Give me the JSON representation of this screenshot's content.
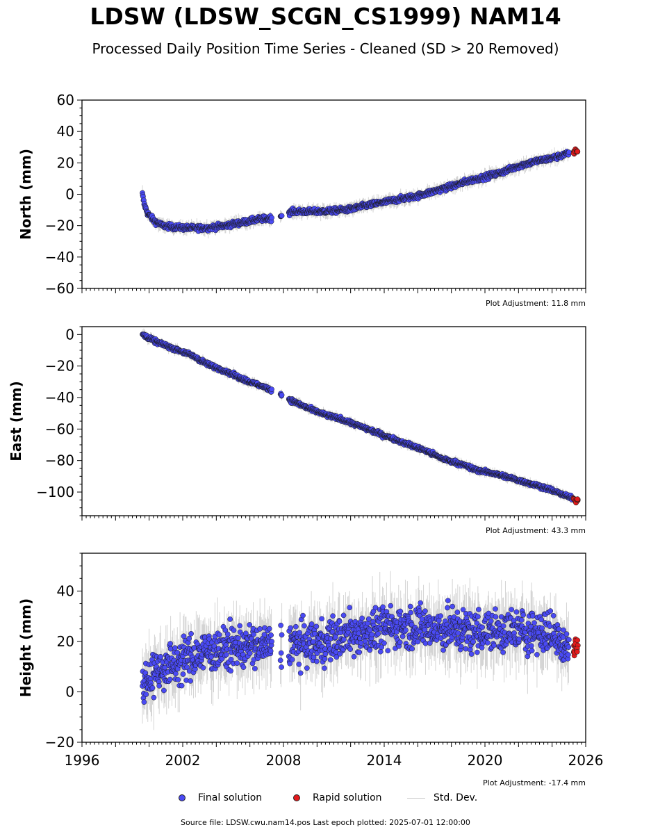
{
  "title": "LDSW (LDSW_SCGN_CS1999) NAM14",
  "subtitle": "Processed Daily Position Time Series - Cleaned (SD > 20 Removed)",
  "legend": {
    "final_label": "Final solution",
    "rapid_label": "Rapid solution",
    "std_label": "Std. Dev."
  },
  "source": "Source file: LDSW.cwu.nam14.pos  Last epoch plotted: 2025-07-01 12:00:00",
  "colors": {
    "final": "#4a4af4",
    "rapid": "#e41a1c",
    "stddev": "#a0a0a0",
    "marker_edge": "#1a1a1a"
  },
  "chart_data": [
    {
      "type": "scatter",
      "ylabel": "North (mm)",
      "xlim": [
        1996,
        2026
      ],
      "ylim": [
        -60,
        60
      ],
      "yticks": [
        -60,
        -40,
        -20,
        0,
        20,
        40,
        60
      ],
      "adjustment": "Plot Adjustment: 11.8 mm",
      "final_series": [
        [
          1999.6,
          0
        ],
        [
          1999.7,
          -6
        ],
        [
          1999.9,
          -12
        ],
        [
          2000.3,
          -17
        ],
        [
          2000.8,
          -20
        ],
        [
          2001.5,
          -21
        ],
        [
          2002.5,
          -21.5
        ],
        [
          2003.5,
          -21.5
        ],
        [
          2004.5,
          -20
        ],
        [
          2005.5,
          -18
        ],
        [
          2006.5,
          -16
        ],
        [
          2007.5,
          -15
        ],
        [
          2008.5,
          -11
        ],
        [
          2010,
          -11
        ],
        [
          2011,
          -10.5
        ],
        [
          2012,
          -9.5
        ],
        [
          2013,
          -7
        ],
        [
          2014,
          -5
        ],
        [
          2015,
          -3
        ],
        [
          2016,
          -1
        ],
        [
          2017,
          2
        ],
        [
          2018,
          5
        ],
        [
          2019,
          8.5
        ],
        [
          2020,
          11
        ],
        [
          2021,
          14
        ],
        [
          2022,
          18
        ],
        [
          2023,
          21
        ],
        [
          2024,
          23
        ],
        [
          2025,
          26
        ]
      ],
      "rapid_series": [
        [
          2025.3,
          27
        ],
        [
          2025.4,
          28
        ],
        [
          2025.5,
          27
        ]
      ],
      "noise": 2.0,
      "gaps": [
        [
          2007.3,
          2007.8
        ],
        [
          2007.9,
          2008.3
        ]
      ]
    },
    {
      "type": "scatter",
      "ylabel": "East (mm)",
      "xlim": [
        1996,
        2026
      ],
      "ylim": [
        -115,
        5
      ],
      "yticks": [
        -100,
        -80,
        -60,
        -40,
        -20,
        0
      ],
      "adjustment": "Plot Adjustment: 43.3 mm",
      "final_series": [
        [
          1999.6,
          0
        ],
        [
          2000.5,
          -5
        ],
        [
          2001.5,
          -9
        ],
        [
          2002.5,
          -13
        ],
        [
          2003.5,
          -19
        ],
        [
          2004.5,
          -23
        ],
        [
          2005.5,
          -28
        ],
        [
          2006.5,
          -32
        ],
        [
          2007.5,
          -36
        ],
        [
          2008.5,
          -42
        ],
        [
          2009.5,
          -47
        ],
        [
          2010.5,
          -51
        ],
        [
          2011.5,
          -54
        ],
        [
          2012.5,
          -58
        ],
        [
          2013.5,
          -62
        ],
        [
          2014.5,
          -66
        ],
        [
          2015.5,
          -70
        ],
        [
          2016.5,
          -74
        ],
        [
          2017.5,
          -79
        ],
        [
          2018.5,
          -82
        ],
        [
          2019.5,
          -86
        ],
        [
          2020.5,
          -88
        ],
        [
          2021.5,
          -91
        ],
        [
          2022.5,
          -94
        ],
        [
          2023.5,
          -97
        ],
        [
          2024.5,
          -101
        ],
        [
          2025.2,
          -104
        ]
      ],
      "rapid_series": [
        [
          2025.3,
          -104
        ],
        [
          2025.4,
          -106
        ],
        [
          2025.5,
          -105
        ]
      ],
      "noise": 1.5,
      "gaps": [
        [
          2007.3,
          2007.8
        ],
        [
          2007.9,
          2008.3
        ]
      ]
    },
    {
      "type": "scatter",
      "ylabel": "Height (mm)",
      "xlim": [
        1996,
        2026
      ],
      "xticks": [
        1996,
        2002,
        2008,
        2014,
        2020,
        2026
      ],
      "ylim": [
        -20,
        55
      ],
      "yticks": [
        -20,
        0,
        20,
        40
      ],
      "adjustment": "Plot Adjustment: -17.4 mm",
      "final_series": [
        [
          1999.6,
          3
        ],
        [
          2000.3,
          8
        ],
        [
          2001.5,
          11
        ],
        [
          2002.5,
          14
        ],
        [
          2003.5,
          16
        ],
        [
          2004.5,
          17
        ],
        [
          2005.5,
          18
        ],
        [
          2006.5,
          18
        ],
        [
          2007.5,
          18
        ],
        [
          2008.5,
          19
        ],
        [
          2010,
          19
        ],
        [
          2011,
          21
        ],
        [
          2012,
          23
        ],
        [
          2013,
          24
        ],
        [
          2014,
          25
        ],
        [
          2015,
          26
        ],
        [
          2016,
          26
        ],
        [
          2017,
          25
        ],
        [
          2018,
          25
        ],
        [
          2019,
          24
        ],
        [
          2020,
          24
        ],
        [
          2021,
          24
        ],
        [
          2022,
          24
        ],
        [
          2023,
          24
        ],
        [
          2024,
          23
        ],
        [
          2025,
          18
        ]
      ],
      "rapid_series": [
        [
          2025.3,
          16
        ],
        [
          2025.4,
          18
        ],
        [
          2025.5,
          17
        ]
      ],
      "noise": 6.0,
      "gaps": [
        [
          2007.3,
          2007.8
        ],
        [
          2007.9,
          2008.3
        ]
      ]
    }
  ]
}
